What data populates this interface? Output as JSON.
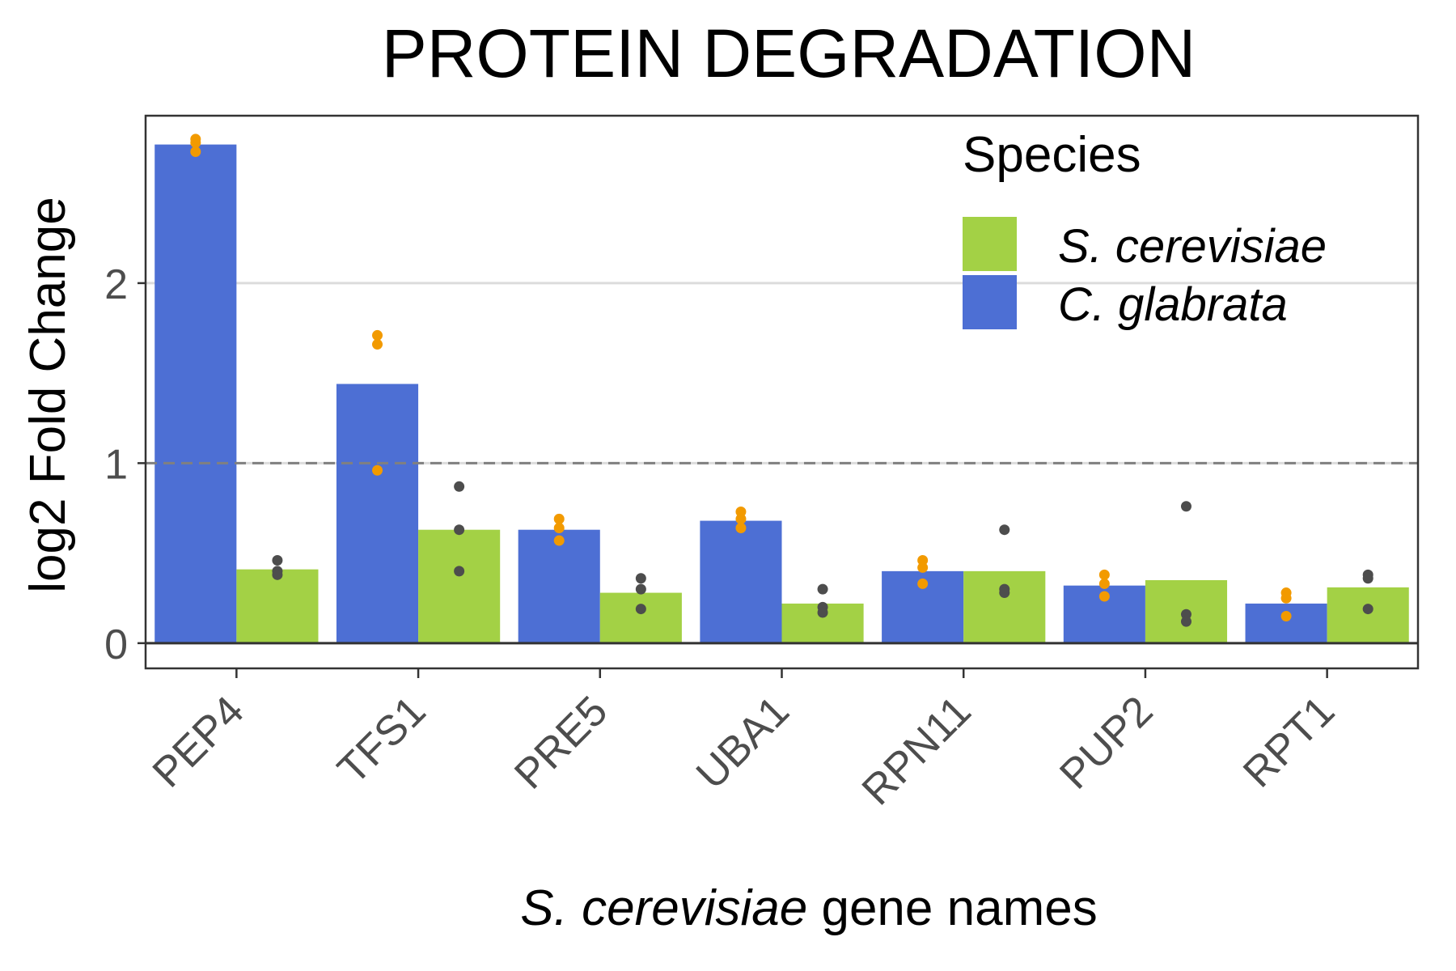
{
  "chart_data": {
    "type": "bar",
    "title": "PROTEIN DEGRADATION",
    "xlabel_italic": "S. cerevisiae",
    "xlabel_rest": " gene names",
    "ylabel": "log2 Fold Change",
    "ylim": [
      -0.14,
      2.93
    ],
    "yticks": [
      0,
      1,
      2
    ],
    "grid": "horizontal major gridlines",
    "reference_lines": [
      {
        "y": 0,
        "style": "solid"
      },
      {
        "y": 1,
        "style": "dashed"
      }
    ],
    "categories": [
      "PEP4",
      "TFS1",
      "PRE5",
      "UBA1",
      "RPN11",
      "PUP2",
      "RPT1"
    ],
    "legend": {
      "title": "Species",
      "position": "top-right"
    },
    "series": [
      {
        "name": "C. glabrata",
        "color": "#4d6fd4",
        "point_color": "#f29a00",
        "values": [
          2.77,
          1.44,
          0.63,
          0.68,
          0.4,
          0.32,
          0.22
        ],
        "replicates": [
          [
            2.8,
            2.78,
            2.73
          ],
          [
            1.71,
            1.66,
            0.96
          ],
          [
            0.69,
            0.64,
            0.57
          ],
          [
            0.73,
            0.69,
            0.64
          ],
          [
            0.46,
            0.42,
            0.33
          ],
          [
            0.38,
            0.33,
            0.26
          ],
          [
            0.28,
            0.25,
            0.15
          ]
        ]
      },
      {
        "name": "S. cerevisiae",
        "color": "#a3d145",
        "point_color": "#4d4d4d",
        "values": [
          0.41,
          0.63,
          0.28,
          0.22,
          0.4,
          0.35,
          0.31
        ],
        "replicates": [
          [
            0.46,
            0.4,
            0.38
          ],
          [
            0.87,
            0.63,
            0.4
          ],
          [
            0.36,
            0.3,
            0.19
          ],
          [
            0.3,
            0.2,
            0.17
          ],
          [
            0.63,
            0.3,
            0.28
          ],
          [
            0.76,
            0.16,
            0.12
          ],
          [
            0.38,
            0.36,
            0.19
          ]
        ]
      }
    ]
  }
}
